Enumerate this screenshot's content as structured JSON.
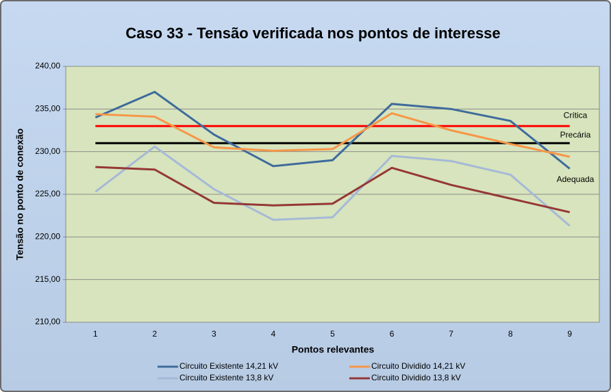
{
  "chart_data": {
    "type": "line",
    "title": "Caso 33 - Tensão verificada nos pontos de interesse",
    "x_label": "Pontos relevantes",
    "y_label": "Tensão no ponto de conexão",
    "categories": [
      "1",
      "2",
      "3",
      "4",
      "5",
      "6",
      "7",
      "8",
      "9"
    ],
    "series": [
      {
        "name": "Circuito Existente 14,21 kV",
        "color": "#3f6b9c",
        "values": [
          234.0,
          237.0,
          232.0,
          228.3,
          229.0,
          235.6,
          235.0,
          233.6,
          228.0
        ]
      },
      {
        "name": "Circuito Dividido 14,21 kV",
        "color": "#f79646",
        "values": [
          234.4,
          234.1,
          230.5,
          230.1,
          230.3,
          234.5,
          232.5,
          230.9,
          229.4
        ]
      },
      {
        "name": "Circuito Existente 13,8 kV",
        "color": "#a5b9d7",
        "values": [
          225.3,
          230.6,
          225.6,
          222.0,
          222.3,
          229.5,
          228.9,
          227.3,
          221.3
        ]
      },
      {
        "name": "Circuito Dividido 13,8 kV",
        "color": "#953735",
        "values": [
          228.2,
          227.9,
          224.0,
          223.7,
          223.9,
          228.1,
          226.1,
          224.5,
          222.9
        ]
      }
    ],
    "reference_lines": [
      {
        "value": 233,
        "color": "#ff0000"
      },
      {
        "value": 231,
        "color": "#000000"
      }
    ],
    "annotations": [
      {
        "text": "Crítica",
        "value": 234.2
      },
      {
        "text": "Precária",
        "value": 231.9
      },
      {
        "text": "Adequada",
        "value": 226.7
      }
    ],
    "ylim": [
      210,
      240
    ],
    "yticks": [
      {
        "value": 210,
        "label": "210,00"
      },
      {
        "value": 215,
        "label": "215,00"
      },
      {
        "value": 220,
        "label": "220,00"
      },
      {
        "value": 225,
        "label": "225,00"
      },
      {
        "value": 230,
        "label": "230,00"
      },
      {
        "value": 235,
        "label": "235,00"
      },
      {
        "value": 240,
        "label": "240,00"
      }
    ],
    "grid": true,
    "legend": "bottom"
  }
}
